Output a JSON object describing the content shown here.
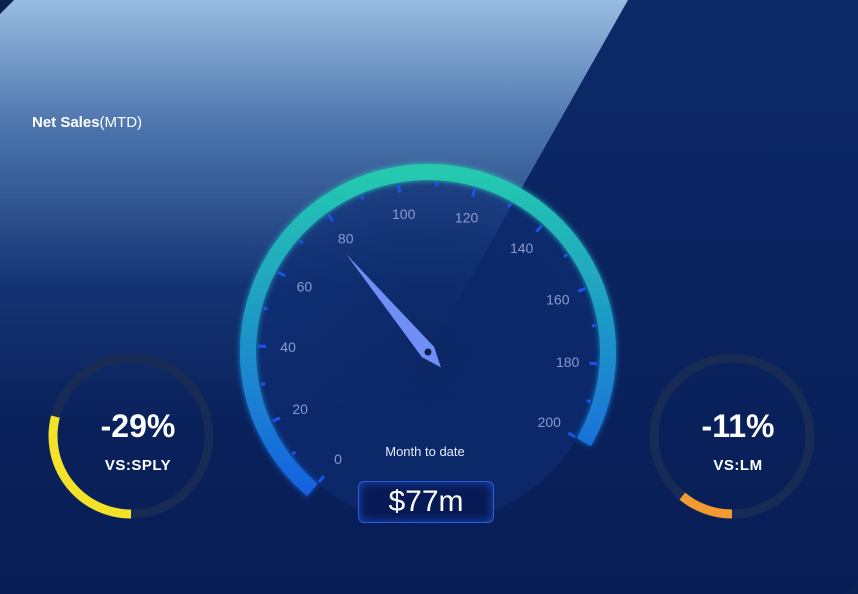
{
  "header": {
    "title_strong": "Net Sales",
    "title_rest": "(MTD)"
  },
  "gauge": {
    "min": 0,
    "max": 200,
    "value": 77,
    "ticks": [
      "0",
      "20",
      "40",
      "60",
      "80",
      "100",
      "120",
      "140",
      "160",
      "180",
      "200"
    ],
    "caption": "Month to date",
    "display_value": "$77m",
    "colors": {
      "start": "#1763e0",
      "end": "#25c9b0",
      "needle": "#6f8ff5"
    }
  },
  "kpis": [
    {
      "value": "-29%",
      "label": "VS:SPLY",
      "fraction": 0.29,
      "color": "#f2e22a",
      "direction": "ccw"
    },
    {
      "value": "-11%",
      "label": "VS:LM",
      "fraction": 0.11,
      "color": "#f39a32",
      "direction": "ccw"
    }
  ]
}
